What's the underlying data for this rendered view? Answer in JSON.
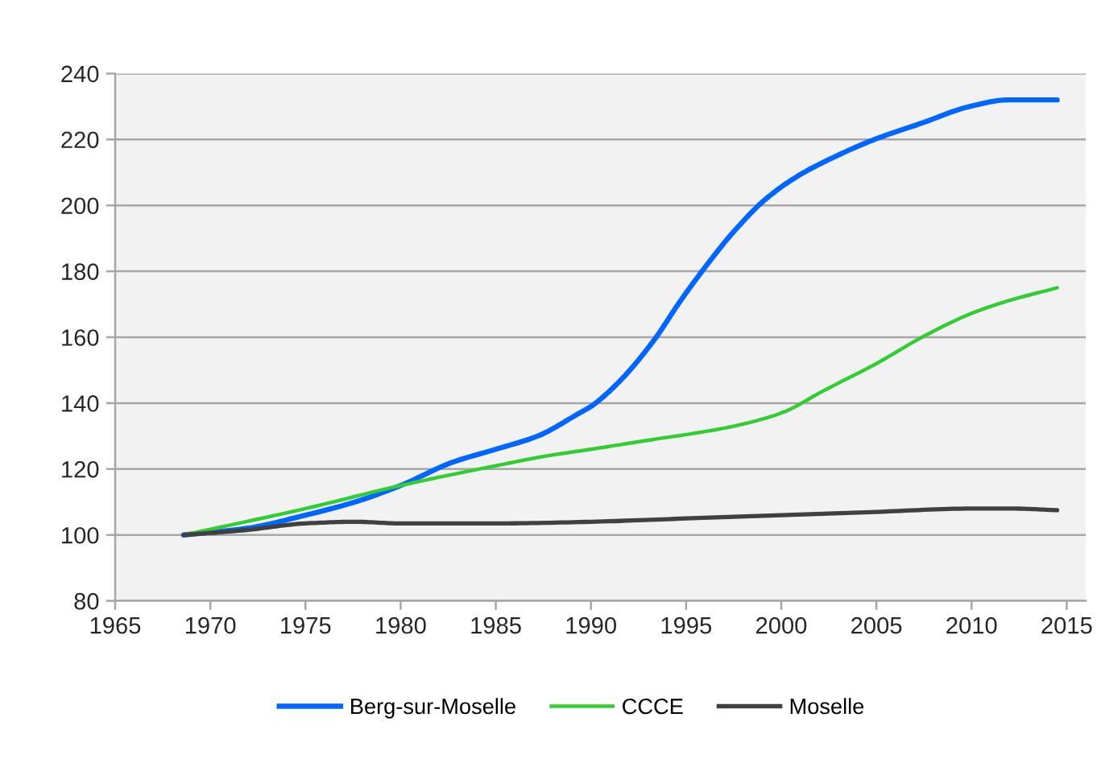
{
  "chart_data": {
    "type": "line",
    "series": [
      {
        "name": "Berg-sur-Moselle",
        "color": "#0066ff",
        "x": [
          1968.6,
          1971.9,
          1975,
          1977.6,
          1980,
          1982.7,
          1985,
          1987.2,
          1989.4,
          1990,
          1991.4,
          1993.3,
          1994.7,
          1996.1,
          1997.5,
          1999.2,
          2000.9,
          2002.9,
          2004.9,
          2007.4,
          2009.9,
          2011.9,
          2013.3,
          2014.5
        ],
        "values": [
          100,
          102,
          106,
          110,
          115,
          122,
          126,
          130,
          137,
          139,
          146,
          159,
          171,
          182,
          192,
          202,
          209,
          215,
          220,
          225,
          230,
          232,
          232,
          232
        ]
      },
      {
        "name": "CCCE",
        "color": "#33cc33",
        "x": [
          1968.6,
          1975,
          1980,
          1985,
          1987.7,
          1990,
          1993.3,
          1995.6,
          1997.5,
          2000,
          2002.3,
          2005,
          2007.4,
          2009.9,
          2011.9,
          2014.5
        ],
        "values": [
          100,
          108,
          115,
          121,
          124,
          126,
          129,
          131,
          133,
          137,
          144,
          152,
          160,
          167,
          171,
          175
        ]
      },
      {
        "name": "Moselle",
        "color": "#404040",
        "x": [
          1968.6,
          1971.9,
          1975,
          1977.6,
          1980,
          1985,
          1990,
          1995,
          2000,
          2005,
          2010,
          2012.2,
          2014.5
        ],
        "values": [
          100,
          101.5,
          103.5,
          104,
          103.5,
          103.5,
          104,
          105,
          106,
          107,
          108,
          108,
          107.5
        ]
      }
    ],
    "xlim": [
      1965,
      2016
    ],
    "xticks": [
      1965,
      1970,
      1975,
      1980,
      1985,
      1990,
      1995,
      2000,
      2005,
      2010,
      2015
    ],
    "ylim": [
      80,
      240
    ],
    "yticks": [
      80,
      100,
      120,
      140,
      160,
      180,
      200,
      220,
      240
    ],
    "grid": "y",
    "legend": "bottom",
    "marker": "none",
    "line_style": "solid"
  }
}
